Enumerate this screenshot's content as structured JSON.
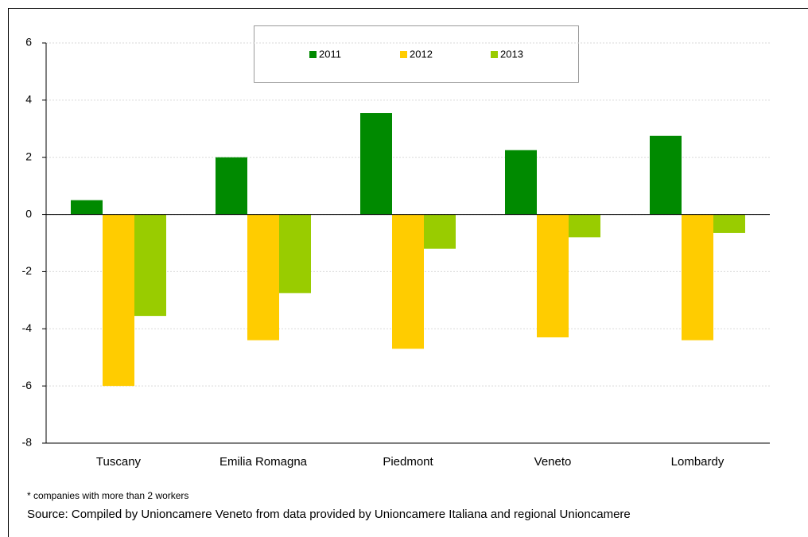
{
  "chart_data": {
    "type": "bar",
    "categories": [
      "Tuscany",
      "Emilia Romagna",
      "Piedmont",
      "Veneto",
      "Lombardy"
    ],
    "series": [
      {
        "name": "2011",
        "color": "#008a00",
        "values": [
          0.5,
          2.0,
          3.55,
          2.25,
          2.75
        ]
      },
      {
        "name": "2012",
        "color": "#ffcc00",
        "values": [
          -6.0,
          -4.4,
          -4.7,
          -4.3,
          -4.4
        ]
      },
      {
        "name": "2013",
        "color": "#99cc00",
        "values": [
          -3.55,
          -2.75,
          -1.2,
          -0.8,
          -0.65
        ]
      }
    ],
    "ylim": [
      -8,
      6
    ],
    "yticks": [
      -8,
      -6,
      -4,
      -2,
      0,
      2,
      4,
      6
    ],
    "grid": true,
    "legend": "top",
    "footnote": "* companies with more than 2 workers",
    "source": "Source: Compiled by Unioncamere Veneto from data provided by Unioncamere Italiana and regional Unioncamere"
  }
}
